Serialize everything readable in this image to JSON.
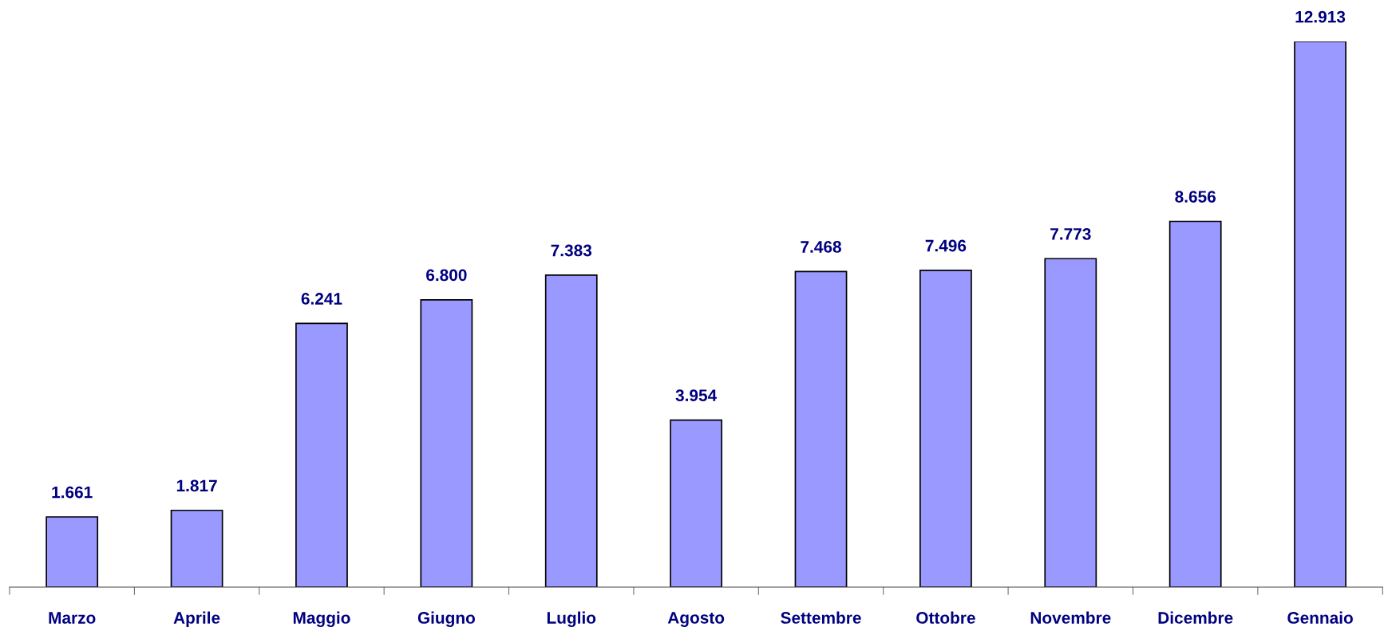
{
  "chart_data": {
    "type": "bar",
    "categories": [
      "Marzo",
      "Aprile",
      "Maggio",
      "Giugno",
      "Luglio",
      "Agosto",
      "Settembre",
      "Ottobre",
      "Novembre",
      "Dicembre",
      "Gennaio"
    ],
    "values": [
      1661,
      1817,
      6241,
      6800,
      7383,
      3954,
      7468,
      7496,
      7773,
      8656,
      12913
    ],
    "value_labels": [
      "1.661",
      "1.817",
      "6.241",
      "6.800",
      "7.383",
      "3.954",
      "7.468",
      "7.496",
      "7.773",
      "8.656",
      "12.913"
    ],
    "color": "#9999ff",
    "grid": false,
    "legend": false
  }
}
